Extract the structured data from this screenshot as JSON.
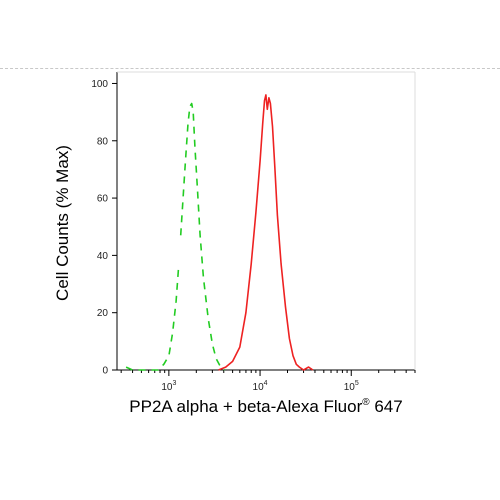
{
  "chart_data": {
    "type": "line",
    "xlabel": "PP2A alpha + beta-Alexa Fluor",
    "xlabel_sup": "®",
    "xlabel_suffix": " 647",
    "ylabel": "Cell Counts (% Max)",
    "x_scale": "log",
    "xlim": [
      270,
      500000
    ],
    "ylim": [
      0,
      104
    ],
    "grid": false,
    "legend": "none",
    "y_ticks": [
      0,
      20,
      40,
      60,
      80,
      100
    ],
    "x_ticks": [
      {
        "value": 1000,
        "base": "10",
        "exp": "3"
      },
      {
        "value": 10000,
        "base": "10",
        "exp": "4"
      },
      {
        "value": 100000,
        "base": "10",
        "exp": "5"
      }
    ],
    "series": [
      {
        "color": "#22cc22",
        "dash": "dashed",
        "x": [
          1350,
          1500,
          1620,
          1700,
          1780,
          1850,
          1930,
          2050,
          2200,
          2400,
          2700,
          3000,
          3300,
          3700,
          4100
        ],
        "y": [
          47,
          70,
          86,
          92,
          93,
          90,
          78,
          64,
          47,
          32,
          18,
          9,
          4,
          1,
          0
        ]
      },
      {
        "color": "#ee2222",
        "dash": "solid",
        "x": [
          3500,
          4200,
          5000,
          6000,
          7000,
          8000,
          9000,
          10000,
          10700,
          11200,
          11600,
          12000,
          12500,
          13000,
          13700,
          14500,
          15500,
          17000,
          19000,
          21000,
          23000,
          25000,
          27000,
          30000,
          34000,
          38000
        ],
        "y": [
          0,
          1,
          3,
          8,
          20,
          37,
          55,
          73,
          86,
          94,
          96,
          91,
          95,
          93,
          85,
          71,
          54,
          37,
          22,
          11,
          5,
          2,
          1,
          0,
          1,
          0
        ]
      },
      {
        "color": "#22cc22",
        "dash": "dashed",
        "x": [
          340,
          400,
          470,
          560,
          650,
          760,
          880,
          1000,
          1100,
          1200,
          1280
        ],
        "y": [
          1,
          0,
          0,
          0,
          0,
          0,
          2,
          5,
          13,
          24,
          36
        ]
      }
    ]
  }
}
